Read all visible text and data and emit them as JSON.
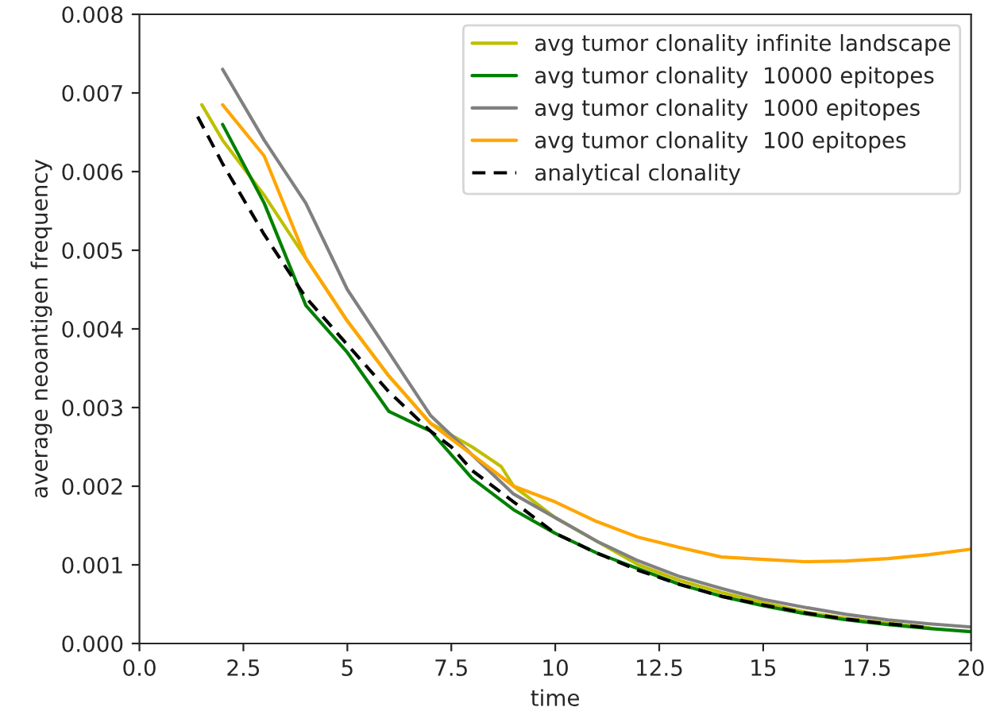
{
  "chart_data": {
    "type": "line",
    "xlabel": "time",
    "ylabel": "average neoantigen frequency",
    "xlim": [
      0,
      20
    ],
    "ylim": [
      0,
      0.008
    ],
    "xticks": [
      {
        "value": 0,
        "label": "0.0"
      },
      2.5,
      5,
      7.5,
      10,
      12.5,
      15,
      17.5,
      20
    ],
    "yticks": [
      {
        "value": 0,
        "label": "0.000"
      },
      {
        "value": 0.001,
        "label": "0.001"
      },
      {
        "value": 0.002,
        "label": "0.002"
      },
      {
        "value": 0.003,
        "label": "0.003"
      },
      {
        "value": 0.004,
        "label": "0.004"
      },
      {
        "value": 0.005,
        "label": "0.005"
      },
      {
        "value": 0.006,
        "label": "0.006"
      },
      {
        "value": 0.007,
        "label": "0.007"
      },
      {
        "value": 0.008,
        "label": "0.008"
      }
    ],
    "legend": "top right",
    "grid": false,
    "series": [
      {
        "name": "avg tumor clonality infinite landscape",
        "color": "#bfbf00",
        "line_style": "solid",
        "x": [
          1.5,
          2,
          3,
          4,
          5,
          6,
          7,
          8,
          8.7,
          9,
          10,
          11,
          12,
          13,
          14,
          15,
          16,
          17,
          18,
          19
        ],
        "values": [
          0.00685,
          0.0064,
          0.0057,
          0.0049,
          0.0041,
          0.0034,
          0.0028,
          0.0025,
          0.00225,
          0.002,
          0.0016,
          0.0013,
          0.001,
          0.0008,
          0.00065,
          0.00052,
          0.0004,
          0.00032,
          0.00026,
          0.0002
        ]
      },
      {
        "name": "avg tumor clonality  10000 epitopes",
        "color": "#008000",
        "line_style": "solid",
        "x": [
          2,
          3,
          4,
          5,
          6,
          7,
          8,
          9,
          10,
          11,
          12,
          13,
          14,
          15,
          16,
          17,
          18,
          19,
          20
        ],
        "values": [
          0.0066,
          0.0056,
          0.0043,
          0.0037,
          0.00295,
          0.0027,
          0.0021,
          0.0017,
          0.0014,
          0.00115,
          0.00095,
          0.00075,
          0.0006,
          0.00048,
          0.00038,
          0.0003,
          0.00024,
          0.00019,
          0.00015
        ]
      },
      {
        "name": "avg tumor clonality  1000 epitopes",
        "color": "#808080",
        "line_style": "solid",
        "x": [
          2,
          3,
          4,
          5,
          6,
          7,
          8,
          9,
          10,
          11,
          12,
          13,
          14,
          15,
          16,
          17,
          18,
          19,
          20
        ],
        "values": [
          0.0073,
          0.0064,
          0.0056,
          0.0045,
          0.0037,
          0.0029,
          0.0024,
          0.0019,
          0.0016,
          0.0013,
          0.00105,
          0.00085,
          0.0007,
          0.00056,
          0.00046,
          0.00037,
          0.0003,
          0.00025,
          0.00021
        ]
      },
      {
        "name": "avg tumor clonality  100 epitopes",
        "color": "#ffa500",
        "line_style": "solid",
        "x": [
          2,
          3,
          4,
          5,
          6,
          7,
          8,
          9,
          10,
          11,
          12,
          13,
          14,
          15,
          16,
          17,
          18,
          19,
          20
        ],
        "values": [
          0.00685,
          0.0062,
          0.0049,
          0.0041,
          0.0034,
          0.0028,
          0.0024,
          0.002,
          0.0018,
          0.00155,
          0.00135,
          0.00122,
          0.0011,
          0.00107,
          0.00104,
          0.00105,
          0.00108,
          0.00113,
          0.0012
        ]
      },
      {
        "name": "analytical clonality",
        "color": "#000000",
        "line_style": "dashed",
        "x": [
          1.4,
          2,
          3,
          4,
          5,
          6,
          7,
          7.5,
          8,
          9,
          10,
          11,
          12,
          13,
          14,
          15,
          16,
          17,
          18,
          19
        ],
        "values": [
          0.0067,
          0.0061,
          0.0052,
          0.0044,
          0.0038,
          0.0032,
          0.0027,
          0.0025,
          0.0022,
          0.0018,
          0.0014,
          0.00115,
          0.00093,
          0.00075,
          0.0006,
          0.00049,
          0.00039,
          0.00031,
          0.00025,
          0.0002
        ]
      }
    ]
  }
}
